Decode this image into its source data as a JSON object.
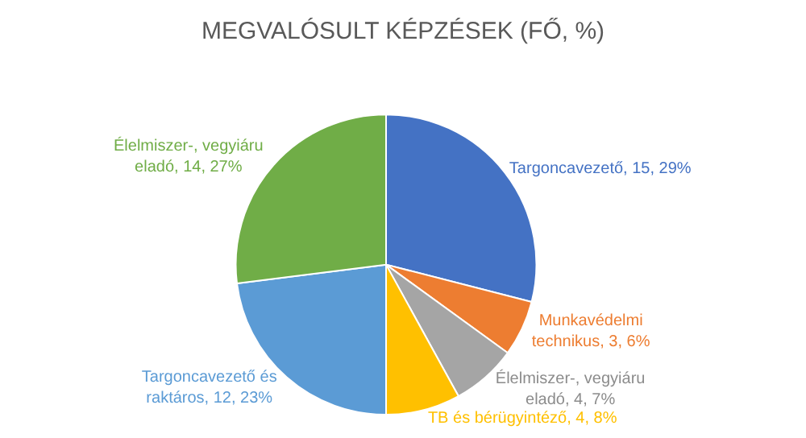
{
  "chart_data": {
    "type": "pie",
    "title": "MEGVALÓSULT KÉPZÉSEK (FŐ, %)",
    "categories": [
      "Targoncavezető",
      "Munkavédelmi technikus",
      "Élelmiszer-, vegyiáru eladó",
      "TB és bérügyintéző",
      "Targoncavezető és raktáros",
      "Élelmiszer-, vegyiáru eladó"
    ],
    "values": [
      29,
      6,
      7,
      8,
      23,
      27
    ],
    "value_labels": [
      "15, 29%",
      "3, 6%",
      "4, 7%",
      "4, 8%",
      "12, 23%",
      "14, 27%"
    ],
    "colors": [
      "#4472c4",
      "#ed7d31",
      "#a5a5a5",
      "#ffc000",
      "#5b9bd5",
      "#70ad47"
    ],
    "legend": false
  }
}
